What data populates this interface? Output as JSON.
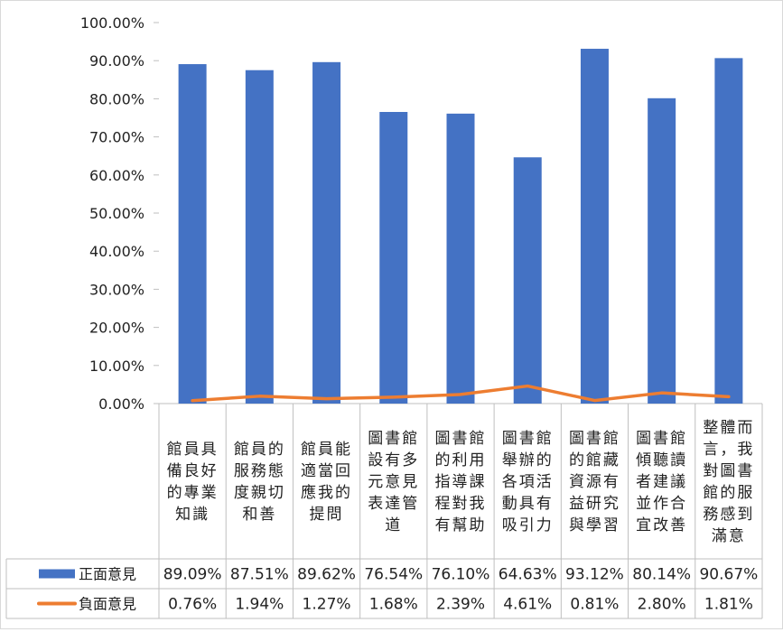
{
  "chart_data": {
    "type": "bar",
    "title": "",
    "xlabel": "",
    "ylabel": "",
    "ylim": [
      0,
      100
    ],
    "ytick_labels": [
      "0.00%",
      "10.00%",
      "20.00%",
      "30.00%",
      "40.00%",
      "50.00%",
      "60.00%",
      "70.00%",
      "80.00%",
      "90.00%",
      "100.00%"
    ],
    "grid": false,
    "legend_position": "data-table-left",
    "categories": [
      [
        "館員具",
        "備良好",
        "的專業",
        "知識"
      ],
      [
        "館員的",
        "服務態",
        "度親切",
        "和善"
      ],
      [
        "館員能",
        "適當回",
        "應我的",
        "提問"
      ],
      [
        "圖書館",
        "設有多",
        "元意見",
        "表達管",
        "道"
      ],
      [
        "圖書館",
        "的利用",
        "指導課",
        "程對我",
        "有幫助"
      ],
      [
        "圖書館",
        "舉辦的",
        "各項活",
        "動具有",
        "吸引力"
      ],
      [
        "圖書館",
        "的館藏",
        "資源有",
        "益研究",
        "與學習"
      ],
      [
        "圖書館",
        "傾聽讀",
        "者建議",
        "並作合",
        "宜改善"
      ],
      [
        "整體而",
        "言，我",
        "對圖書",
        "館的服",
        "務感到",
        "滿意"
      ]
    ],
    "series": [
      {
        "name": "正面意見",
        "kind": "bar",
        "color": "#4472C4",
        "values": [
          89.09,
          87.51,
          89.62,
          76.54,
          76.1,
          64.63,
          93.12,
          80.14,
          90.67
        ],
        "labels": [
          "89.09%",
          "87.51%",
          "89.62%",
          "76.54%",
          "76.10%",
          "64.63%",
          "93.12%",
          "80.14%",
          "90.67%"
        ]
      },
      {
        "name": "負面意見",
        "kind": "line",
        "color": "#ED7D31",
        "values": [
          0.76,
          1.94,
          1.27,
          1.68,
          2.39,
          4.61,
          0.81,
          2.8,
          1.81
        ],
        "labels": [
          "0.76%",
          "1.94%",
          "1.27%",
          "1.68%",
          "2.39%",
          "4.61%",
          "0.81%",
          "2.80%",
          "1.81%"
        ]
      }
    ]
  }
}
